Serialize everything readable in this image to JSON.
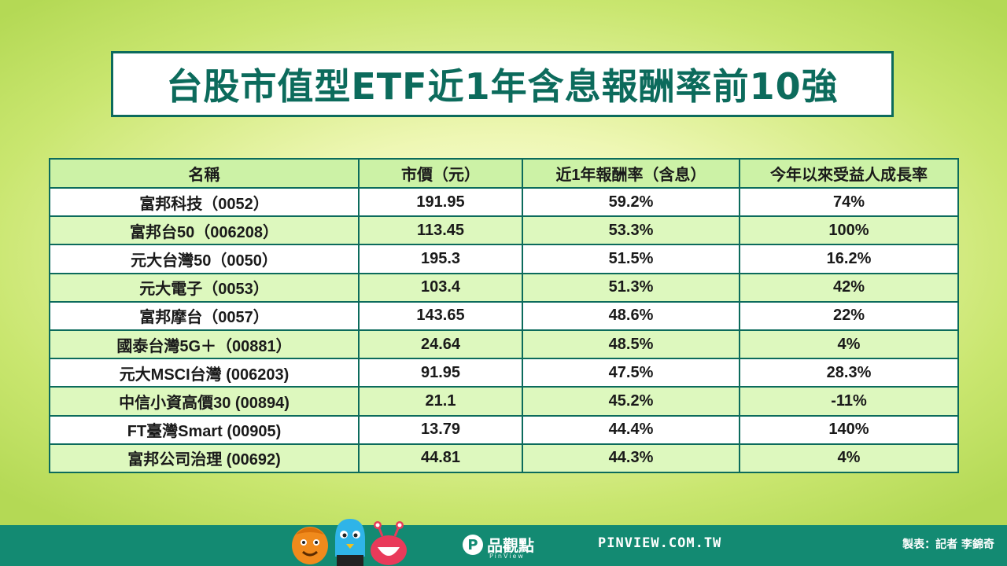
{
  "title": "台股市值型ETF近1年含息報酬率前10強",
  "table": {
    "headers": [
      "名稱",
      "市價（元）",
      "近1年報酬率（含息）",
      "今年以來受益人成長率"
    ],
    "rows": [
      {
        "name": "富邦科技（0052）",
        "price": "191.95",
        "return": "59.2%",
        "growth": "74%"
      },
      {
        "name": "富邦台50（006208）",
        "price": "113.45",
        "return": "53.3%",
        "growth": "100%"
      },
      {
        "name": "元大台灣50（0050）",
        "price": "195.3",
        "return": "51.5%",
        "growth": "16.2%"
      },
      {
        "name": "元大電子（0053）",
        "price": "103.4",
        "return": "51.3%",
        "growth": "42%"
      },
      {
        "name": "富邦摩台（0057）",
        "price": "143.65",
        "return": "48.6%",
        "growth": "22%"
      },
      {
        "name": "國泰台灣5G＋（00881）",
        "price": "24.64",
        "return": "48.5%",
        "growth": "4%"
      },
      {
        "name": "元大MSCI台灣 (006203)",
        "price": "91.95",
        "return": "47.5%",
        "growth": "28.3%"
      },
      {
        "name": "中信小資高價30 (00894)",
        "price": "21.1",
        "return": "45.2%",
        "growth": "-11%"
      },
      {
        "name": "FT臺灣Smart  (00905)",
        "price": "13.79",
        "return": "44.4%",
        "growth": "140%"
      },
      {
        "name": "富邦公司治理 (00692)",
        "price": "44.81",
        "return": "44.3%",
        "growth": "4%"
      }
    ]
  },
  "footer": {
    "brand_cn": "品觀點",
    "brand_en": "PinView",
    "site": "PINVIEW.COM.TW",
    "credit": "製表：記者 李錦奇"
  },
  "colors": {
    "accent": "#0c6b5c",
    "footer_bg": "#138a72",
    "header_row": "#ccf2a6",
    "alt_row": "#ddf8be"
  }
}
